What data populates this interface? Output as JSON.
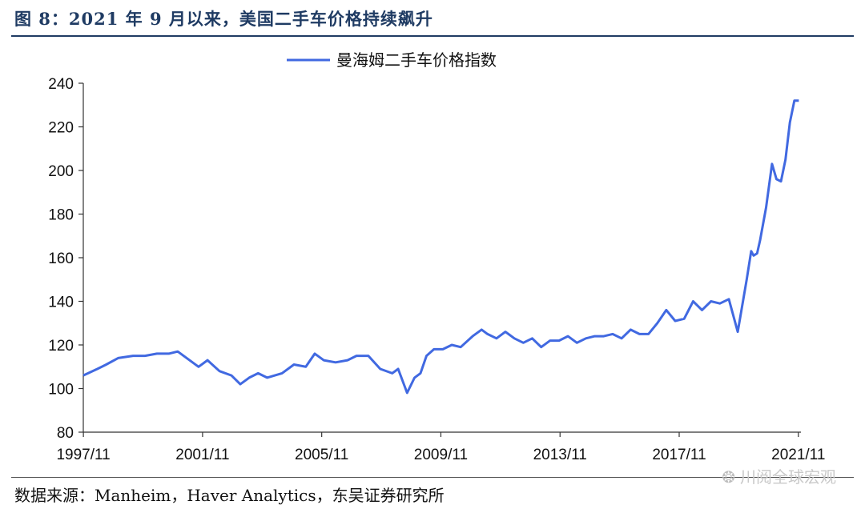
{
  "title": "图 8：2021 年 9 月以来，美国二手车价格持续飙升",
  "source": "数据来源：Manheim，Haver Analytics，东吴证券研究所",
  "watermark": {
    "icon": "wechat-icon",
    "text": "川阅全球宏观"
  },
  "colors": {
    "line": "#4169e1",
    "title": "#1f3b63"
  },
  "chart_data": {
    "type": "line",
    "title": "",
    "xlabel": "",
    "ylabel": "",
    "ylim": [
      80,
      240
    ],
    "y_ticks": [
      "80",
      "100",
      "120",
      "140",
      "160",
      "180",
      "200",
      "220",
      "240"
    ],
    "x_ticks": [
      "1997/11",
      "2001/11",
      "2005/11",
      "2009/11",
      "2013/11",
      "2017/11",
      "2021/11"
    ],
    "grid": false,
    "legend_position": "top-center",
    "series": [
      {
        "name": "曼海姆二手车价格指数",
        "x": [
          1997.83,
          1998.3,
          1998.6,
          1999.0,
          1999.5,
          1999.9,
          2000.3,
          2000.7,
          2001.0,
          2001.3,
          2001.7,
          2002.0,
          2002.4,
          2002.8,
          2003.1,
          2003.4,
          2003.7,
          2004.0,
          2004.5,
          2004.9,
          2005.3,
          2005.6,
          2005.9,
          2006.3,
          2006.7,
          2007.0,
          2007.4,
          2007.8,
          2008.2,
          2008.4,
          2008.7,
          2008.95,
          2009.15,
          2009.35,
          2009.6,
          2009.9,
          2010.2,
          2010.5,
          2010.9,
          2011.2,
          2011.4,
          2011.7,
          2012.0,
          2012.3,
          2012.6,
          2012.9,
          2013.2,
          2013.5,
          2013.8,
          2014.1,
          2014.4,
          2014.7,
          2015.0,
          2015.3,
          2015.6,
          2015.9,
          2016.2,
          2016.5,
          2016.8,
          2017.1,
          2017.4,
          2017.7,
          2018.0,
          2018.3,
          2018.6,
          2018.9,
          2019.2,
          2019.5,
          2019.8,
          2020.1,
          2020.25,
          2020.33,
          2020.45,
          2020.55,
          2020.75,
          2020.95,
          2021.1,
          2021.25,
          2021.4,
          2021.55,
          2021.7,
          2021.85
        ],
        "values": [
          106,
          109,
          111,
          114,
          115,
          115,
          116,
          116,
          117,
          114,
          110,
          113,
          108,
          106,
          102,
          105,
          107,
          105,
          107,
          111,
          110,
          116,
          113,
          112,
          113,
          115,
          115,
          109,
          107,
          109,
          98,
          105,
          107,
          115,
          118,
          118,
          120,
          119,
          124,
          127,
          125,
          123,
          126,
          123,
          121,
          123,
          119,
          122,
          122,
          124,
          121,
          123,
          124,
          124,
          125,
          123,
          127,
          125,
          125,
          130,
          136,
          131,
          132,
          140,
          136,
          140,
          139,
          141,
          126,
          150,
          163,
          161,
          162,
          168,
          183,
          203,
          196,
          195,
          205,
          222,
          232,
          232
        ]
      }
    ]
  }
}
